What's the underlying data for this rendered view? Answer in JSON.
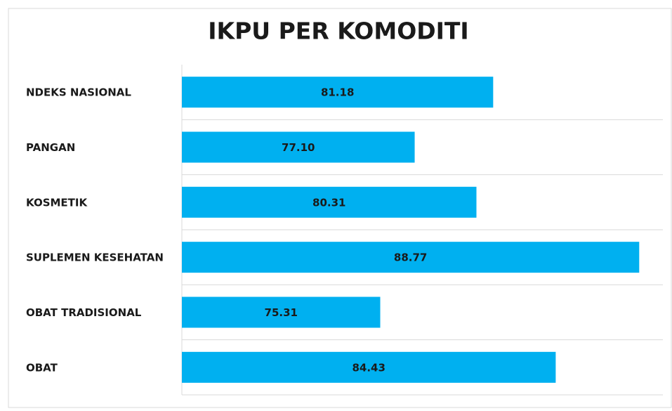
{
  "chart_data": {
    "type": "bar",
    "orientation": "horizontal",
    "title": "IKPU PER KOMODITI",
    "categories": [
      "NDEKS NASIONAL",
      "PANGAN",
      "KOSMETIK",
      "SUPLEMEN KESEHATAN",
      "OBAT TRADISIONAL",
      "OBAT"
    ],
    "values": [
      81.18,
      77.1,
      80.31,
      88.77,
      75.31,
      84.43
    ],
    "value_labels": [
      "81.18",
      "77.10",
      "80.31",
      "88.77",
      "75.31",
      "84.43"
    ],
    "color": "#00b0f0",
    "xlim": [
      65,
      90
    ]
  }
}
